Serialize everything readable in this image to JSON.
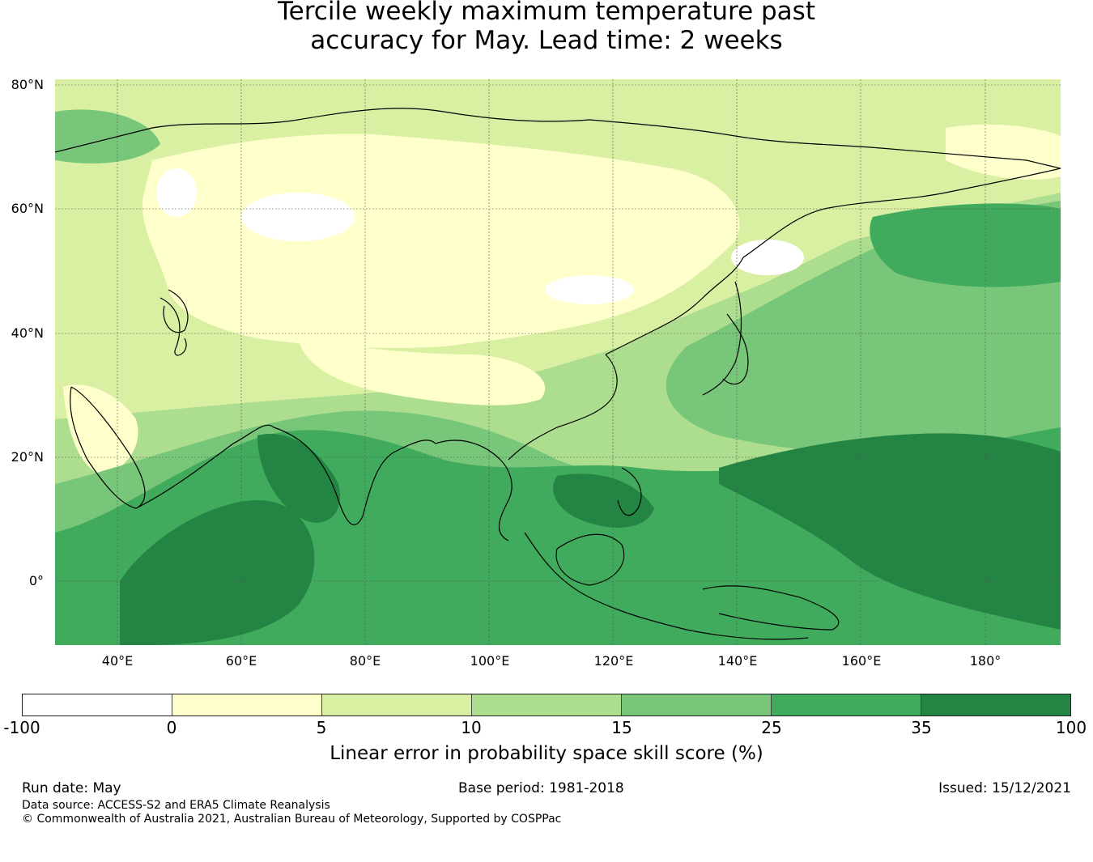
{
  "title": {
    "line1": "Tercile weekly maximum temperature past",
    "line2": "accuracy for May. Lead time: 2 weeks"
  },
  "map": {
    "lat_labels": [
      "80°N",
      "60°N",
      "40°N",
      "20°N",
      "0°"
    ],
    "lon_labels": [
      "40°E",
      "60°E",
      "80°E",
      "100°E",
      "120°E",
      "140°E",
      "160°E",
      "180°"
    ]
  },
  "colorbar": {
    "colors": [
      "#ffffff",
      "#ffffcc",
      "#d9f0a3",
      "#addd8e",
      "#78c679",
      "#41ab5d",
      "#238443"
    ],
    "ticks": [
      "-100",
      "0",
      "5",
      "10",
      "15",
      "25",
      "35",
      "100"
    ],
    "label": "Linear error in probability space skill score (%)"
  },
  "footer": {
    "run_date": "Run date: May",
    "base_period": "Base period: 1981-2018",
    "issued": "Issued: 15/12/2021",
    "data_source": "Data source: ACCESS-S2 and ERA5 Climate Reanalysis",
    "copyright": "© Commonwealth of Australia 2021, Australian Bureau of Meteorology, Supported by COSPPac"
  }
}
